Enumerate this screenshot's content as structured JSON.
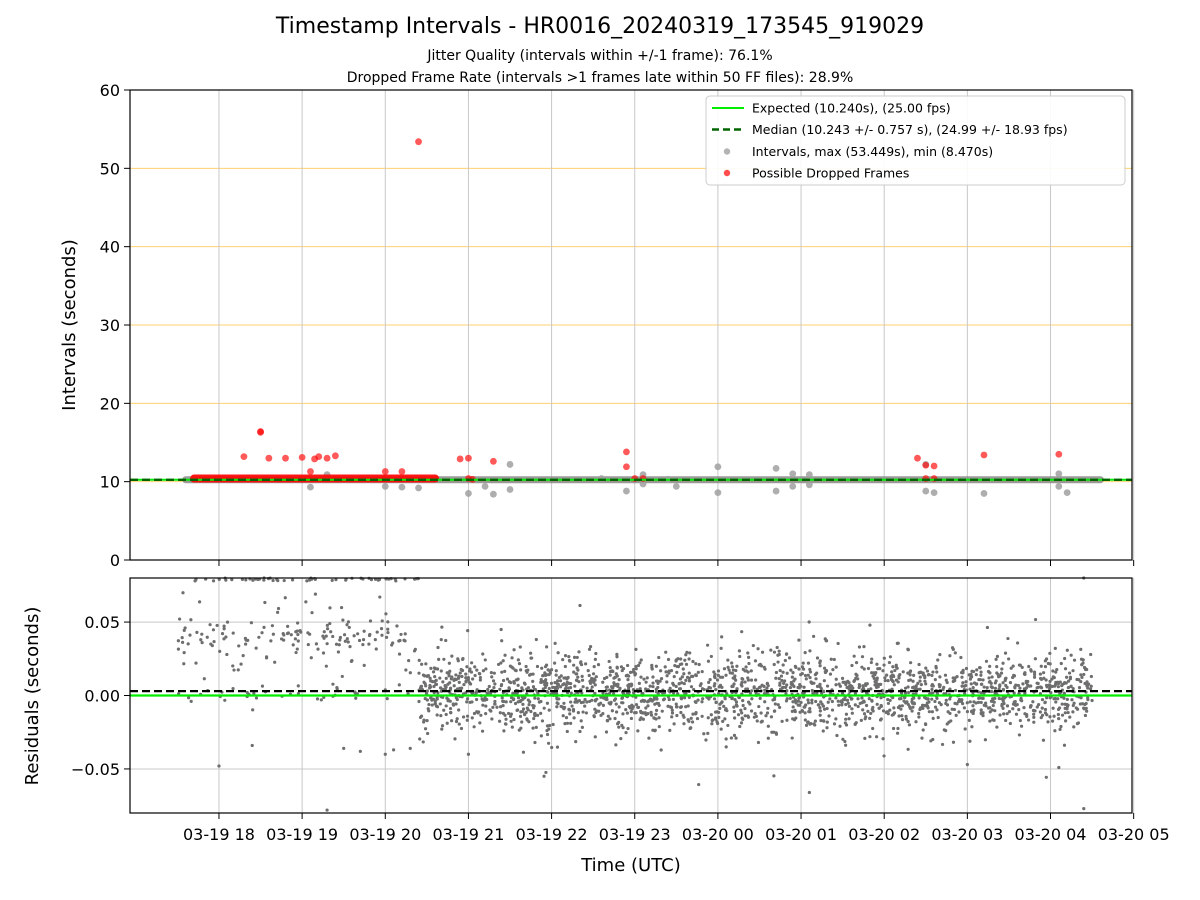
{
  "title": "Timestamp Intervals - HR0016_20240319_173545_919029",
  "subtitle_1": "Jitter Quality (intervals within +/-1 frame): 76.1%",
  "subtitle_2": "Dropped Frame Rate (intervals >1 frames late within 50 FF files): 28.9%",
  "colors": {
    "expected": "#00ee00",
    "median": "#006400",
    "interval": "#a0a0a0",
    "dropped": "#ff0000",
    "residual": "#6e6e6e",
    "hgrid_top": "#ffd070",
    "grid": "#c8c8c8"
  },
  "chart_data": [
    {
      "type": "scatter",
      "panel": "intervals",
      "ylabel": "Intervals (seconds)",
      "ylim": [
        0,
        60
      ],
      "yticks": [
        "0",
        "10",
        "20",
        "30",
        "40",
        "50",
        "60"
      ],
      "xlim_hours": [
        16.93,
        28.98
      ],
      "expected": 10.24,
      "median": 10.243,
      "legend_position": "top-right",
      "legend": [
        "Expected (10.240s), (25.00 fps)",
        "Median (10.243 +/- 0.757 s), (24.99 +/- 18.93 fps)",
        "Intervals, max (53.449s), min (8.470s)",
        "Possible Dropped Frames"
      ],
      "series": [
        {
          "name": "Intervals, max (53.449s), min (8.470s)",
          "band": {
            "x_start": 17.6,
            "x_end": 28.6,
            "y": 10.24
          },
          "points": [
            [
              19.1,
              9.3
            ],
            [
              19.3,
              10.9
            ],
            [
              20.0,
              9.4
            ],
            [
              20.2,
              9.3
            ],
            [
              20.4,
              9.2
            ],
            [
              21.0,
              8.5
            ],
            [
              21.2,
              9.4
            ],
            [
              21.3,
              8.4
            ],
            [
              21.5,
              12.2
            ],
            [
              21.5,
              9.0
            ],
            [
              22.6,
              10.4
            ],
            [
              22.9,
              8.8
            ],
            [
              23.1,
              10.9
            ],
            [
              23.1,
              9.7
            ],
            [
              23.4,
              10.3
            ],
            [
              23.5,
              9.4
            ],
            [
              24.0,
              11.9
            ],
            [
              24.0,
              8.6
            ],
            [
              24.7,
              11.7
            ],
            [
              24.7,
              8.8
            ],
            [
              24.9,
              11.0
            ],
            [
              24.9,
              9.4
            ],
            [
              25.1,
              10.9
            ],
            [
              25.1,
              9.6
            ],
            [
              26.5,
              12.2
            ],
            [
              26.5,
              8.8
            ],
            [
              26.6,
              8.6
            ],
            [
              27.2,
              8.5
            ],
            [
              28.1,
              11.0
            ],
            [
              28.1,
              9.4
            ],
            [
              28.2,
              8.6
            ]
          ]
        },
        {
          "name": "Possible Dropped Frames",
          "band": {
            "x_start": 17.7,
            "x_end": 20.6,
            "y": 10.4
          },
          "points": [
            [
              18.3,
              13.2
            ],
            [
              18.5,
              16.4
            ],
            [
              18.5,
              16.3
            ],
            [
              18.6,
              13.0
            ],
            [
              18.8,
              13.0
            ],
            [
              19.0,
              13.1
            ],
            [
              19.1,
              11.3
            ],
            [
              19.15,
              12.9
            ],
            [
              19.2,
              13.2
            ],
            [
              19.3,
              13.0
            ],
            [
              19.4,
              13.3
            ],
            [
              20.0,
              11.3
            ],
            [
              20.2,
              11.3
            ],
            [
              20.4,
              53.4
            ],
            [
              20.9,
              12.9
            ],
            [
              21.0,
              13.0
            ],
            [
              21.3,
              12.6
            ],
            [
              22.9,
              13.8
            ],
            [
              22.9,
              11.9
            ],
            [
              26.4,
              13.0
            ],
            [
              26.5,
              12.1
            ],
            [
              26.6,
              12.0
            ],
            [
              27.2,
              13.4
            ],
            [
              28.1,
              13.5
            ],
            [
              21.0,
              10.4
            ],
            [
              21.05,
              10.3
            ],
            [
              23.0,
              10.4
            ],
            [
              23.1,
              10.4
            ],
            [
              26.5,
              10.4
            ],
            [
              26.6,
              10.4
            ]
          ]
        }
      ]
    },
    {
      "type": "scatter",
      "panel": "residuals",
      "ylabel": "Residuals (seconds)",
      "xlabel": "Time (UTC)",
      "ylim": [
        -0.08,
        0.08
      ],
      "yticks": [
        "−0.05",
        "0.00",
        "0.05"
      ],
      "ytick_values": [
        -0.05,
        0.0,
        0.05
      ],
      "expected": 0.0,
      "median": 0.003,
      "x_categories": [
        "03-19 18",
        "03-19 19",
        "03-19 20",
        "03-19 21",
        "03-19 22",
        "03-19 23",
        "03-20 00",
        "03-20 01",
        "03-20 02",
        "03-20 03",
        "03-20 04",
        "03-20 05"
      ],
      "x_tick_hours": [
        18,
        19,
        20,
        21,
        22,
        23,
        24,
        25,
        26,
        27,
        28,
        29
      ],
      "series": [
        {
          "name": "residuals",
          "early_segment": {
            "x_start": 17.5,
            "x_end": 20.4,
            "cluster": 0.04,
            "spread": 0.045
          },
          "late_segment": {
            "x_start": 20.4,
            "x_end": 28.5,
            "center": 0.002,
            "spread": 0.013
          },
          "outliers": [
            [
              18.0,
              -0.048
            ],
            [
              18.4,
              -0.034
            ],
            [
              20.0,
              -0.04
            ],
            [
              20.1,
              -0.037
            ],
            [
              20.3,
              -0.036
            ],
            [
              21.0,
              -0.04
            ],
            [
              24.1,
              -0.035
            ],
            [
              25.1,
              -0.066
            ],
            [
              27.0,
              -0.047
            ],
            [
              28.1,
              -0.049
            ],
            [
              28.4,
              -0.077
            ],
            [
              28.4,
              0.08
            ],
            [
              19.3,
              -0.078
            ],
            [
              19.5,
              -0.036
            ],
            [
              19.7,
              -0.038
            ]
          ]
        }
      ]
    }
  ]
}
